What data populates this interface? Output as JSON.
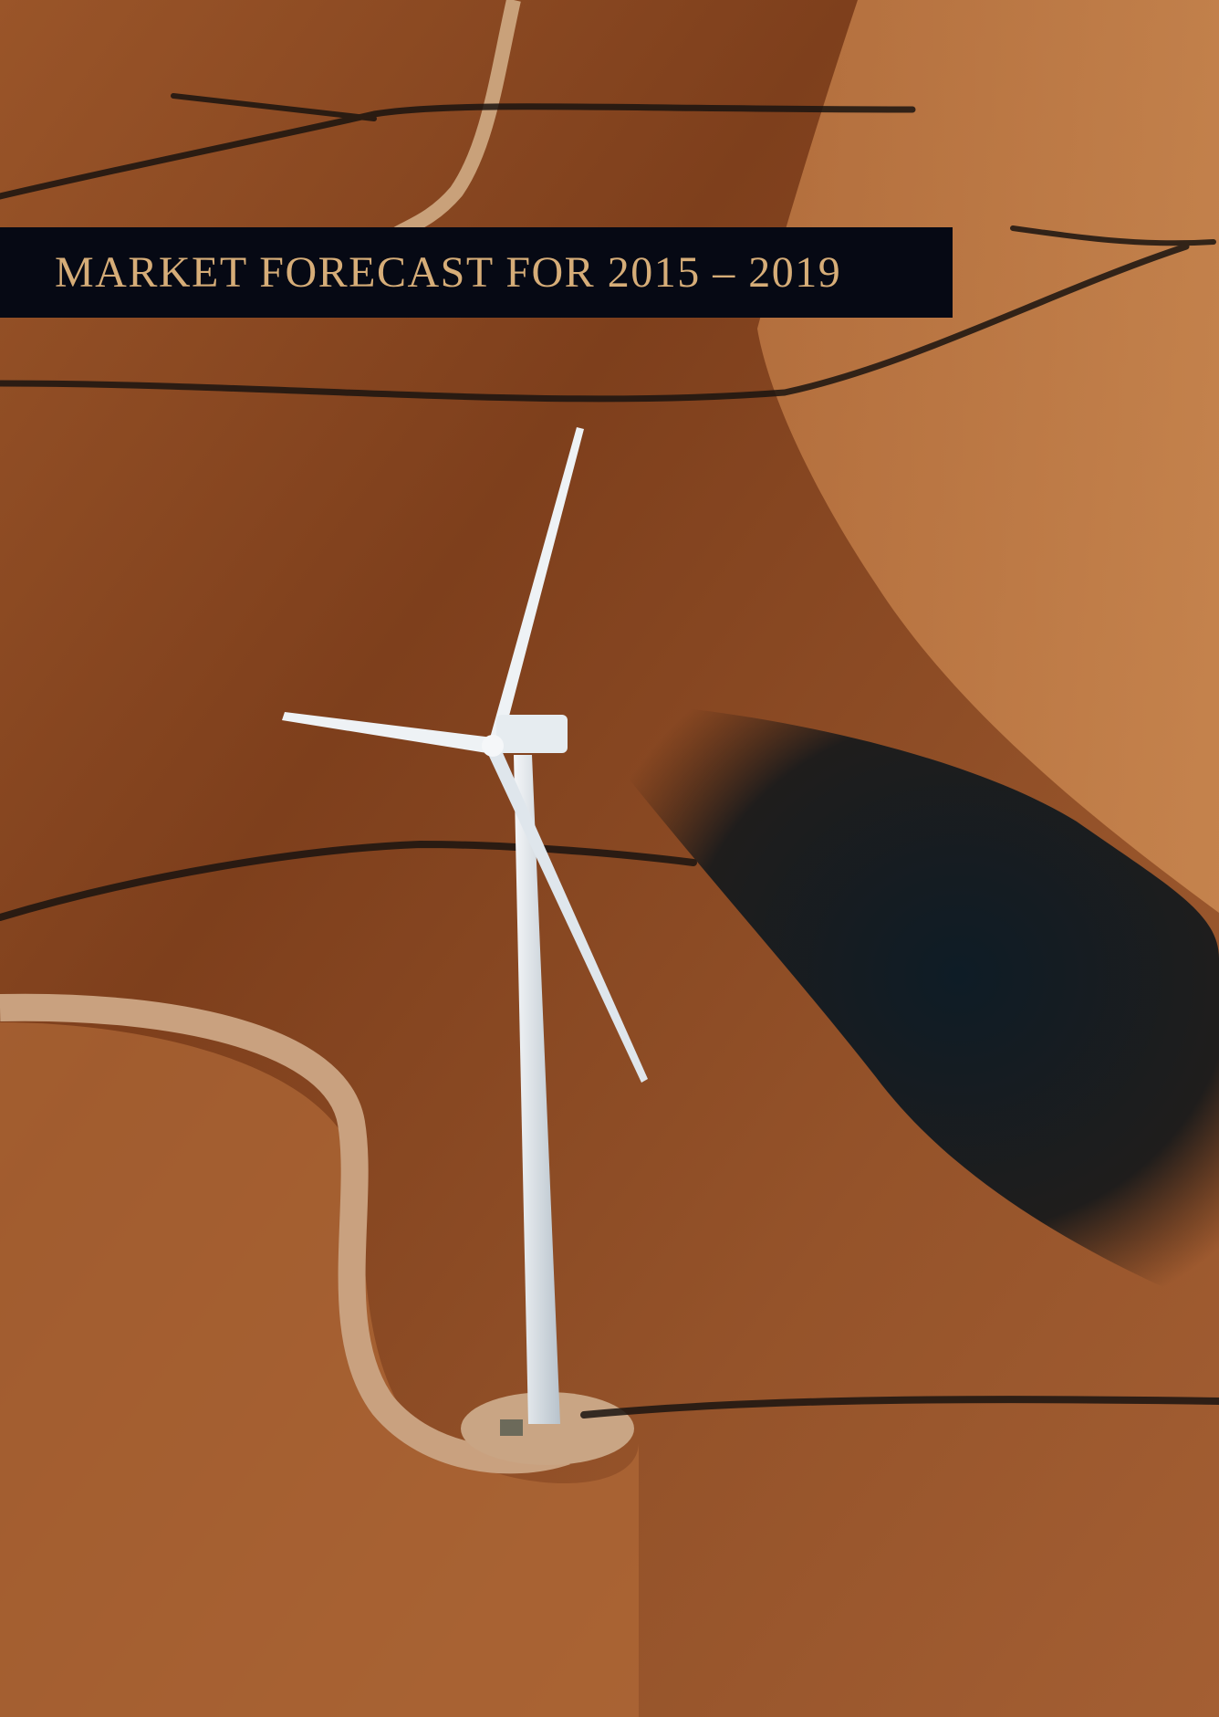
{
  "header": {
    "title": "MARKET FORECAST FOR 2015 – 2019"
  }
}
